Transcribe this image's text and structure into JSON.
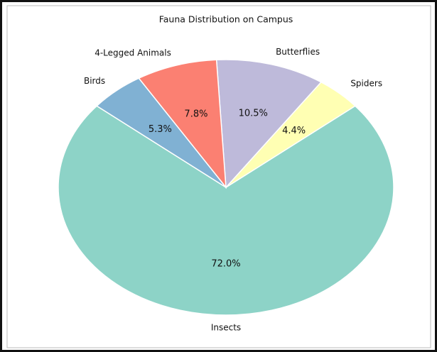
{
  "chart_data": {
    "type": "pie",
    "title": "Fauna Distribution on Campus",
    "categories": [
      "Insects",
      "Spiders",
      "Butterflies",
      "4-Legged Animals",
      "Birds"
    ],
    "values": [
      72.0,
      4.4,
      10.5,
      7.8,
      5.3
    ],
    "value_labels": [
      "72.0%",
      "4.4%",
      "10.5%",
      "7.8%",
      "5.3%"
    ],
    "colors": [
      "#8dd3c7",
      "#ffffb3",
      "#bebada",
      "#fb8072",
      "#80b1d3"
    ]
  }
}
